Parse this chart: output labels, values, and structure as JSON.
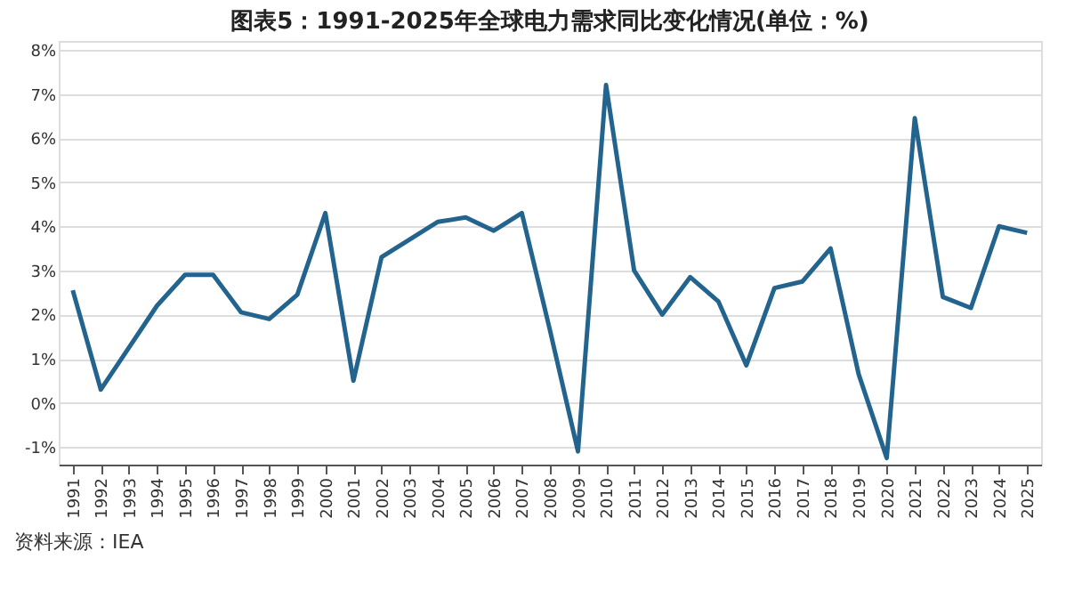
{
  "chart_data": {
    "type": "line",
    "title": "图表5：1991-2025年全球电力需求同比变化情况(单位：%)",
    "categories": [
      "1991",
      "1992",
      "1993",
      "1994",
      "1995",
      "1996",
      "1997",
      "1998",
      "1999",
      "2000",
      "2001",
      "2002",
      "2003",
      "2004",
      "2005",
      "2006",
      "2007",
      "2008",
      "2009",
      "2010",
      "2011",
      "2012",
      "2013",
      "2014",
      "2015",
      "2016",
      "2017",
      "2018",
      "2019",
      "2020",
      "2021",
      "2022",
      "2023",
      "2024",
      "2025"
    ],
    "series": [
      {
        "color": "#23648f",
        "values": [
          2.55,
          0.3,
          1.25,
          2.2,
          2.9,
          2.9,
          2.05,
          1.9,
          2.45,
          4.3,
          0.5,
          3.3,
          3.7,
          4.1,
          4.2,
          3.9,
          4.3,
          1.65,
          -1.1,
          7.2,
          3.0,
          2.0,
          2.85,
          2.3,
          0.85,
          2.6,
          2.75,
          3.5,
          0.65,
          -1.25,
          6.45,
          2.4,
          2.15,
          4.0,
          3.85
        ]
      }
    ],
    "ylim": [
      -1.4,
      8.2
    ],
    "yticks": [
      {
        "value": -1,
        "label": "-1%"
      },
      {
        "value": 0,
        "label": "0%"
      },
      {
        "value": 1,
        "label": "1%"
      },
      {
        "value": 2,
        "label": "2%"
      },
      {
        "value": 3,
        "label": "3%"
      },
      {
        "value": 4,
        "label": "4%"
      },
      {
        "value": 5,
        "label": "5%"
      },
      {
        "value": 6,
        "label": "6%"
      },
      {
        "value": 7,
        "label": "7%"
      },
      {
        "value": 8,
        "label": "8%"
      }
    ],
    "grid": "y",
    "marker": "none",
    "line_style": "solid",
    "annotations": [
      "资料来源：IEA"
    ]
  }
}
